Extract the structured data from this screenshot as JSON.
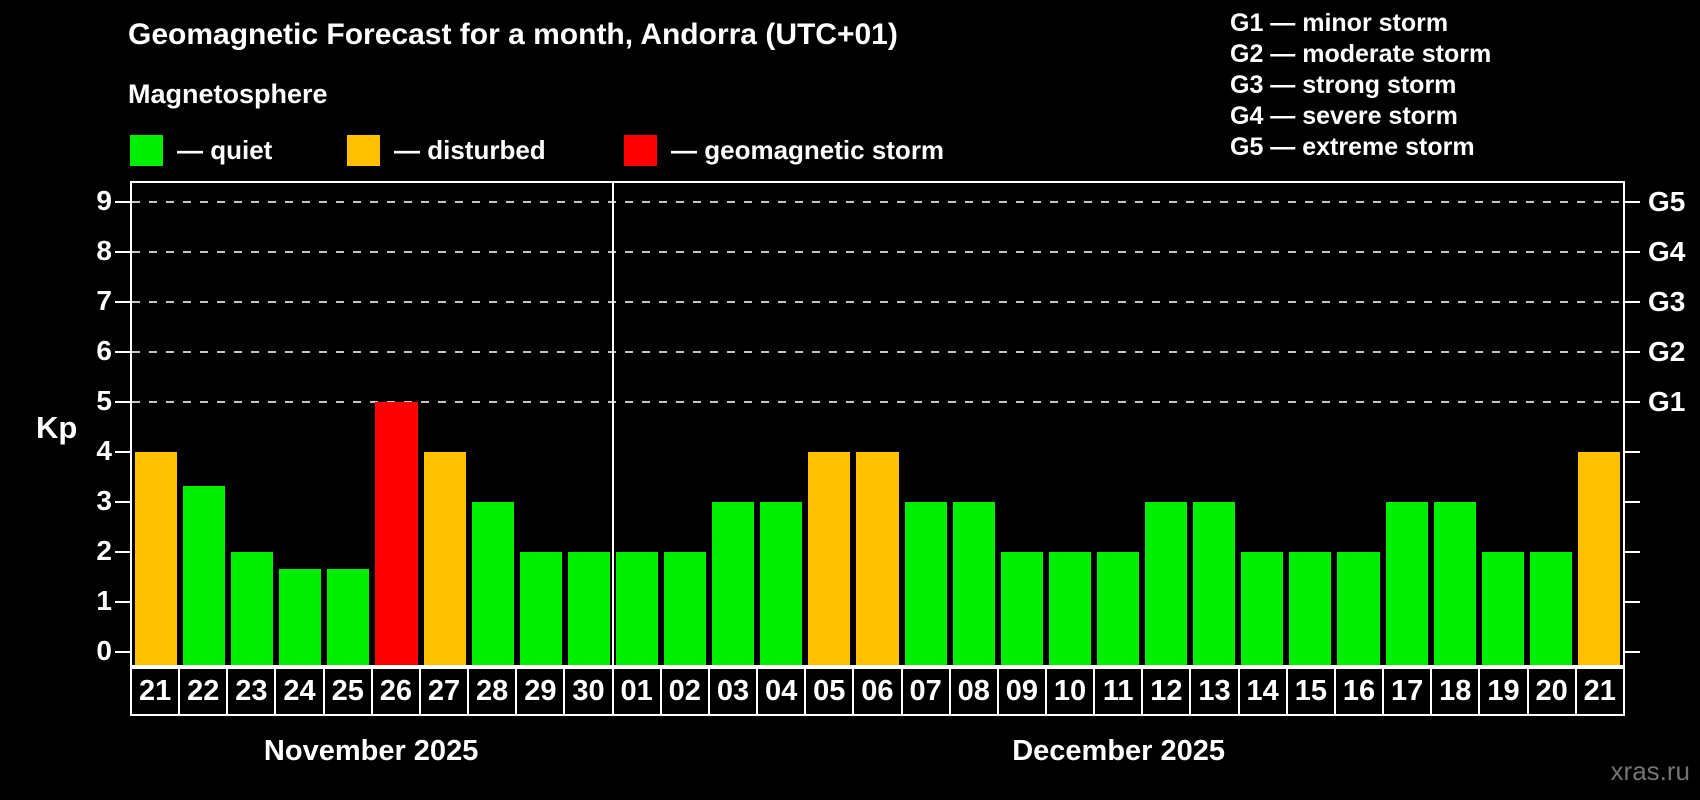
{
  "header": {
    "title": "Geomagnetic Forecast for a month, Andorra (UTC+01)",
    "subtitle": "Magnetosphere"
  },
  "legend": {
    "items": [
      {
        "name": "quiet",
        "label": "— quiet",
        "color": "#00ee00"
      },
      {
        "name": "disturbed",
        "label": "— disturbed",
        "color": "#ffc000"
      },
      {
        "name": "storm",
        "label": "— geomagnetic storm",
        "color": "#ff0000"
      }
    ]
  },
  "g_legend": {
    "items": [
      "G1 — minor storm",
      "G2 — moderate storm",
      "G3 — strong storm",
      "G4 — severe storm",
      "G5 — extreme storm"
    ]
  },
  "watermark": "xras.ru",
  "chart_data": {
    "type": "bar",
    "title": "Geomagnetic Forecast for a month, Andorra (UTC+01)",
    "subtitle": "Magnetosphere",
    "ylabel": "Kp",
    "ylim": [
      0,
      9.3
    ],
    "yticks": [
      0,
      1,
      2,
      3,
      4,
      5,
      6,
      7,
      8,
      9
    ],
    "gridline_levels": [
      5,
      6,
      7,
      8,
      9
    ],
    "grid": "dashed horizontal at Kp 5-9 only",
    "legend_position": "top-left",
    "right_axis": [
      {
        "value": 5,
        "label": "G1"
      },
      {
        "value": 6,
        "label": "G2"
      },
      {
        "value": 7,
        "label": "G3"
      },
      {
        "value": 8,
        "label": "G4"
      },
      {
        "value": 9,
        "label": "G5"
      }
    ],
    "colors": {
      "quiet": "#00ee00",
      "disturbed": "#ffc000",
      "storm": "#ff0000"
    },
    "months": [
      {
        "label": "November 2025",
        "start_index": 0,
        "count": 10
      },
      {
        "label": "December 2025",
        "start_index": 10,
        "count": 21
      }
    ],
    "bars": [
      {
        "day": "21",
        "value": 4,
        "status": "disturbed"
      },
      {
        "day": "22",
        "value": 3.33,
        "status": "quiet"
      },
      {
        "day": "23",
        "value": 2,
        "status": "quiet"
      },
      {
        "day": "24",
        "value": 1.67,
        "status": "quiet"
      },
      {
        "day": "25",
        "value": 1.67,
        "status": "quiet"
      },
      {
        "day": "26",
        "value": 5,
        "status": "storm"
      },
      {
        "day": "27",
        "value": 4,
        "status": "disturbed"
      },
      {
        "day": "28",
        "value": 3,
        "status": "quiet"
      },
      {
        "day": "29",
        "value": 2,
        "status": "quiet"
      },
      {
        "day": "30",
        "value": 2,
        "status": "quiet"
      },
      {
        "day": "01",
        "value": 2,
        "status": "quiet"
      },
      {
        "day": "02",
        "value": 2,
        "status": "quiet"
      },
      {
        "day": "03",
        "value": 3,
        "status": "quiet"
      },
      {
        "day": "04",
        "value": 3,
        "status": "quiet"
      },
      {
        "day": "05",
        "value": 4,
        "status": "disturbed"
      },
      {
        "day": "06",
        "value": 4,
        "status": "disturbed"
      },
      {
        "day": "07",
        "value": 3,
        "status": "quiet"
      },
      {
        "day": "08",
        "value": 3,
        "status": "quiet"
      },
      {
        "day": "09",
        "value": 2,
        "status": "quiet"
      },
      {
        "day": "10",
        "value": 2,
        "status": "quiet"
      },
      {
        "day": "11",
        "value": 2,
        "status": "quiet"
      },
      {
        "day": "12",
        "value": 3,
        "status": "quiet"
      },
      {
        "day": "13",
        "value": 3,
        "status": "quiet"
      },
      {
        "day": "14",
        "value": 2,
        "status": "quiet"
      },
      {
        "day": "15",
        "value": 2,
        "status": "quiet"
      },
      {
        "day": "16",
        "value": 2,
        "status": "quiet"
      },
      {
        "day": "17",
        "value": 3,
        "status": "quiet"
      },
      {
        "day": "18",
        "value": 3,
        "status": "quiet"
      },
      {
        "day": "19",
        "value": 2,
        "status": "quiet"
      },
      {
        "day": "20",
        "value": 2,
        "status": "quiet"
      },
      {
        "day": "21",
        "value": 4,
        "status": "disturbed"
      }
    ]
  }
}
